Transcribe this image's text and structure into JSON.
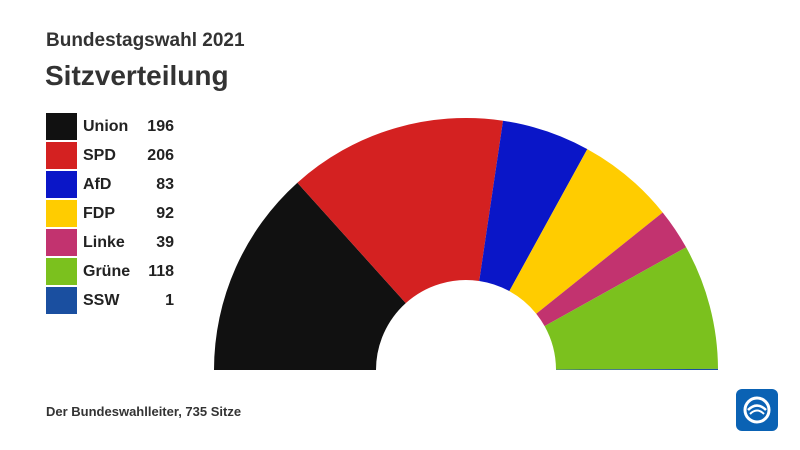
{
  "header": {
    "subtitle": "Bundestagswahl 2021",
    "title": "Sitzverteilung"
  },
  "footer": {
    "source": "Der Bundeswahlleiter, 735 Sitze"
  },
  "logo": {
    "icon": "ard-tagesschau-logo-icon",
    "color": "#0a62b4"
  },
  "chart_data": {
    "type": "pie",
    "variant": "semicircle-donut",
    "total": 735,
    "categories": [
      "Union",
      "SPD",
      "AfD",
      "FDP",
      "Linke",
      "Grüne",
      "SSW"
    ],
    "values": [
      196,
      206,
      83,
      92,
      39,
      118,
      1
    ],
    "colors": [
      "#111111",
      "#d42121",
      "#0a16c8",
      "#ffcc00",
      "#c2336f",
      "#7bc11e",
      "#1a4fa0"
    ],
    "legend": "left"
  }
}
